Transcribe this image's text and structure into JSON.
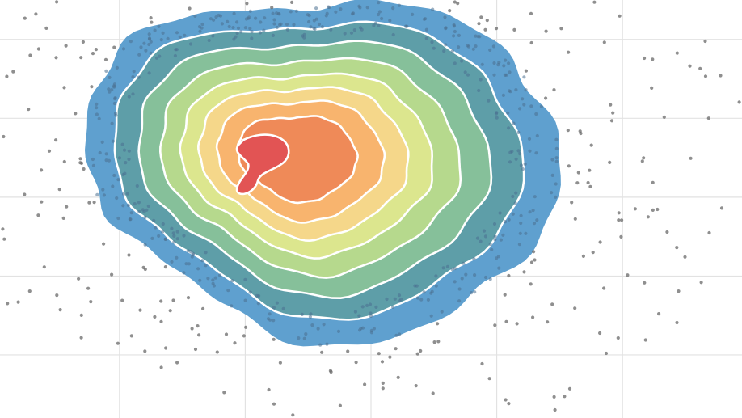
{
  "chart_data": {
    "type": "contour",
    "title": "",
    "xlabel": "",
    "ylabel": "",
    "grid": true,
    "legend": "none",
    "x_grid": [
      0,
      1,
      2,
      3,
      4,
      5
    ],
    "y_grid": [
      0,
      1,
      2,
      3,
      4
    ],
    "xlim": [
      -0.95,
      4.95
    ],
    "ylim": [
      -0.8,
      4.5
    ],
    "density_center": [
      1.5,
      2.5
    ],
    "levels": [
      {
        "level": 1,
        "color": "#5fa0cf",
        "scale": 1.0
      },
      {
        "level": 2,
        "color": "#5e9ea8",
        "scale": 0.86
      },
      {
        "level": 3,
        "color": "#86c09a",
        "scale": 0.74
      },
      {
        "level": 4,
        "color": "#b6d98d",
        "scale": 0.63
      },
      {
        "level": 5,
        "color": "#dce68e",
        "scale": 0.53
      },
      {
        "level": 6,
        "color": "#f5d78a",
        "scale": 0.44
      },
      {
        "level": 7,
        "color": "#f8b46e",
        "scale": 0.35
      },
      {
        "level": 8,
        "color": "#ef8a58",
        "scale": 0.25
      },
      {
        "level": 9,
        "color": "#e25454",
        "scale": 0.11
      }
    ],
    "points_color": "#6a6a6a",
    "points_inside_color": "#4a6f90",
    "outer_points": 330,
    "inner_points": 420
  }
}
